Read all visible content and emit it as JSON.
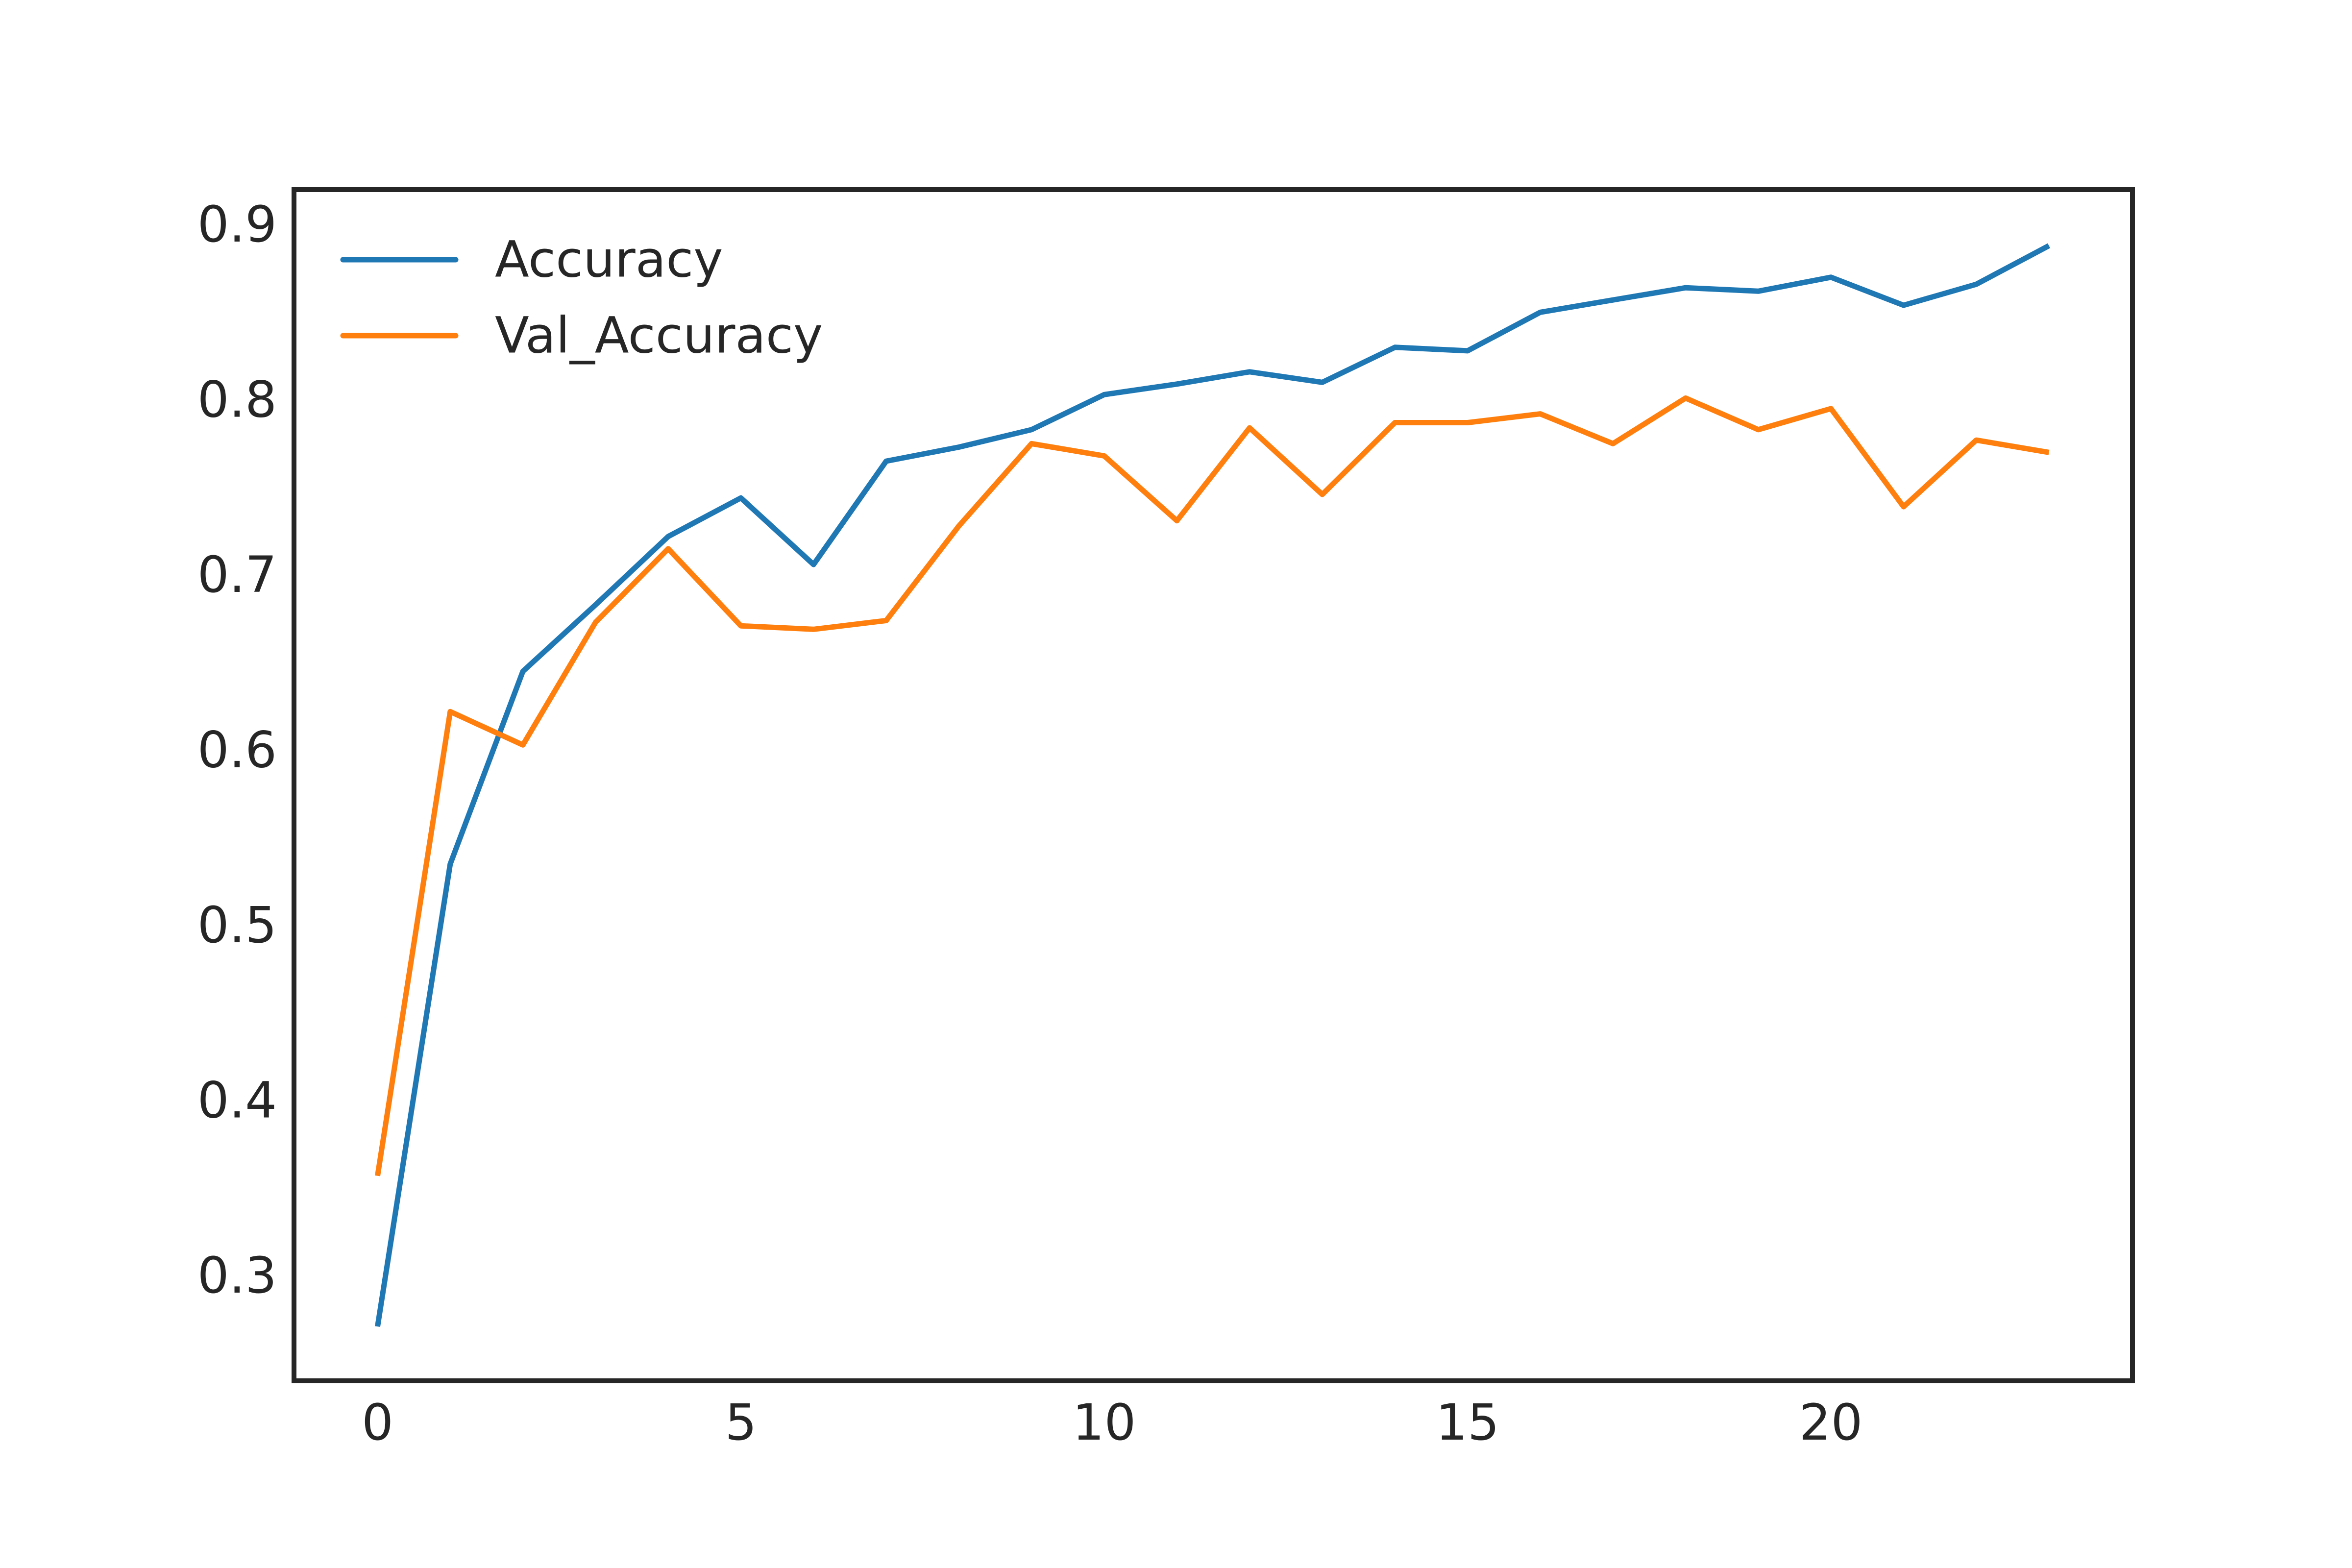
{
  "chart_data": {
    "type": "line",
    "title": "",
    "xlabel": "",
    "ylabel": "",
    "x": [
      0,
      1,
      2,
      3,
      4,
      5,
      6,
      7,
      8,
      9,
      10,
      11,
      12,
      13,
      14,
      15,
      16,
      17,
      18,
      19,
      20,
      21,
      22,
      23
    ],
    "xlim": [
      -1.15,
      24.15
    ],
    "ylim": [
      0.24,
      0.92
    ],
    "xticks": [
      0,
      5,
      10,
      15,
      20
    ],
    "yticks": [
      0.3,
      0.4,
      0.5,
      0.6,
      0.7,
      0.8,
      0.9
    ],
    "xtick_labels": [
      "0",
      "5",
      "10",
      "15",
      "20"
    ],
    "ytick_labels": [
      "0.3",
      "0.4",
      "0.5",
      "0.6",
      "0.7",
      "0.8",
      "0.9"
    ],
    "grid": false,
    "legend_position": "top-left",
    "series": [
      {
        "name": "Accuracy",
        "color": "#1f77b4",
        "values": [
          0.271,
          0.535,
          0.645,
          0.683,
          0.722,
          0.744,
          0.706,
          0.765,
          0.773,
          0.783,
          0.803,
          0.809,
          0.816,
          0.81,
          0.83,
          0.828,
          0.85,
          0.857,
          0.864,
          0.862,
          0.87,
          0.854,
          0.866,
          0.888
        ]
      },
      {
        "name": "Val_Accuracy",
        "color": "#ff7f0e",
        "values": [
          0.357,
          0.622,
          0.603,
          0.673,
          0.715,
          0.671,
          0.669,
          0.674,
          0.728,
          0.775,
          0.768,
          0.731,
          0.784,
          0.746,
          0.787,
          0.787,
          0.792,
          0.775,
          0.801,
          0.783,
          0.795,
          0.739,
          0.777,
          0.77
        ]
      }
    ]
  }
}
